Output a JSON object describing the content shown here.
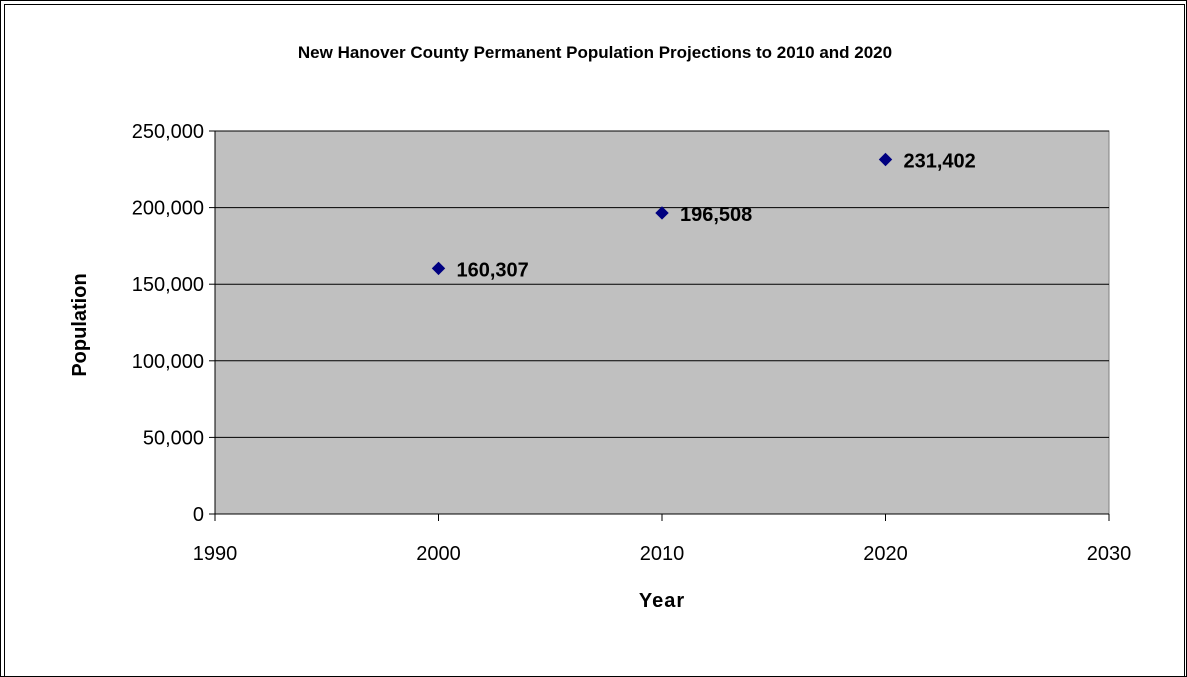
{
  "chart_data": {
    "type": "scatter",
    "title": "New Hanover County Permanent Population Projections to 2010 and 2020",
    "xlabel": "Year",
    "ylabel": "Population",
    "xlim": [
      1990,
      2030
    ],
    "ylim": [
      0,
      250000
    ],
    "x_ticks": [
      1990,
      2000,
      2010,
      2020,
      2030
    ],
    "x_tick_labels": [
      "1990",
      "2000",
      "2010",
      "2020",
      "2030"
    ],
    "y_ticks": [
      0,
      50000,
      100000,
      150000,
      200000,
      250000
    ],
    "y_tick_labels": [
      "0",
      "50,000",
      "100,000",
      "150,000",
      "200,000",
      "250,000"
    ],
    "grid": true,
    "legend": "none",
    "plot_background": "#c0c0c0",
    "marker_color": "#000080",
    "marker": "diamond",
    "series": [
      {
        "x": [
          2000,
          2010,
          2020
        ],
        "values": [
          160307,
          196508,
          231402
        ],
        "data_labels": [
          "160,307",
          "196,508",
          "231,402"
        ]
      }
    ]
  }
}
